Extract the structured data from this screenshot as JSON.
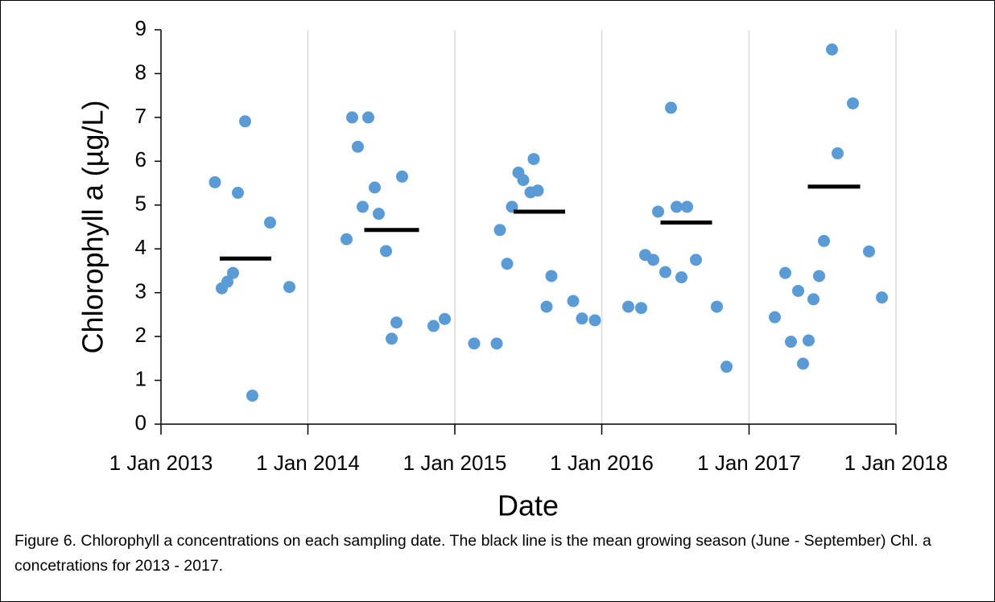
{
  "chart_data": {
    "type": "scatter",
    "y_label": "Chlorophyll a (µg/L)",
    "x_label": "Date",
    "caption": "Figure 6. Chlorophyll a concentrations on each sampling date. The black line is the mean growing season (June - September) Chl. a concetrations for 2013 - 2017.",
    "color": "#5b9bd5",
    "x": [
      "2013-05-15",
      "2013-06-01",
      "2013-06-15",
      "2013-06-29",
      "2013-07-11",
      "2013-07-29",
      "2013-08-16",
      "2013-09-29",
      "2013-11-16",
      "2014-04-07",
      "2014-04-21",
      "2014-05-05",
      "2014-05-17",
      "2014-05-31",
      "2014-06-16",
      "2014-06-26",
      "2014-07-14",
      "2014-07-28",
      "2014-08-09",
      "2014-08-23",
      "2014-11-09",
      "2014-12-07",
      "2015-02-18",
      "2015-04-15",
      "2015-04-23",
      "2015-05-11",
      "2015-05-23",
      "2015-06-08",
      "2015-06-20",
      "2015-07-08",
      "2015-07-16",
      "2015-07-26",
      "2015-08-17",
      "2015-08-29",
      "2015-10-22",
      "2015-11-13",
      "2015-12-15",
      "2016-03-07",
      "2016-04-08",
      "2016-04-18",
      "2016-05-08",
      "2016-05-20",
      "2016-06-07",
      "2016-06-21",
      "2016-07-05",
      "2016-07-17",
      "2016-07-31",
      "2016-08-22",
      "2016-10-13",
      "2016-11-06",
      "2017-03-06",
      "2017-04-01",
      "2017-04-15",
      "2017-05-03",
      "2017-05-15",
      "2017-05-29",
      "2017-06-10",
      "2017-06-24",
      "2017-07-06",
      "2017-07-26",
      "2017-08-09",
      "2017-09-16",
      "2017-10-26",
      "2017-11-27"
    ],
    "values": [
      5.52,
      3.1,
      3.25,
      3.45,
      5.28,
      6.91,
      0.65,
      4.6,
      3.13,
      4.22,
      7.0,
      6.33,
      4.96,
      7.0,
      5.4,
      4.8,
      3.95,
      1.95,
      2.32,
      5.65,
      2.24,
      2.4,
      1.84,
      1.84,
      4.43,
      3.66,
      4.96,
      5.74,
      5.57,
      5.29,
      6.05,
      5.33,
      2.68,
      3.38,
      2.81,
      2.41,
      2.37,
      2.68,
      2.65,
      3.86,
      3.75,
      4.85,
      3.47,
      7.22,
      4.96,
      3.35,
      4.96,
      3.75,
      2.68,
      1.31,
      2.44,
      3.45,
      1.88,
      3.04,
      1.38,
      1.91,
      2.85,
      3.38,
      4.18,
      8.55,
      6.18,
      7.32,
      3.94,
      2.89
    ],
    "means": {
      "color": "#000000",
      "x_start": [
        "2013-05-27",
        "2014-05-21",
        "2015-05-27",
        "2016-05-26",
        "2017-05-27"
      ],
      "x_end": [
        "2013-10-02",
        "2014-10-04",
        "2015-10-02",
        "2016-10-01",
        "2017-10-04"
      ],
      "values": [
        3.78,
        4.43,
        4.85,
        4.6,
        5.42
      ]
    },
    "xlim": [
      "2013-01-01",
      "2018-01-01"
    ],
    "xticks": [
      {
        "value": "2013-01-01",
        "label": "1 Jan 2013"
      },
      {
        "value": "2014-01-01",
        "label": "1 Jan 2014"
      },
      {
        "value": "2015-01-01",
        "label": "1 Jan 2015"
      },
      {
        "value": "2016-01-01",
        "label": "1 Jan 2016"
      },
      {
        "value": "2017-01-01",
        "label": "1 Jan 2017"
      },
      {
        "value": "2018-01-01",
        "label": "1 Jan 2018"
      }
    ],
    "ylim": [
      0,
      9
    ],
    "yticks": [
      0,
      1,
      2,
      3,
      4,
      5,
      6,
      7,
      8,
      9
    ],
    "grid": true
  }
}
